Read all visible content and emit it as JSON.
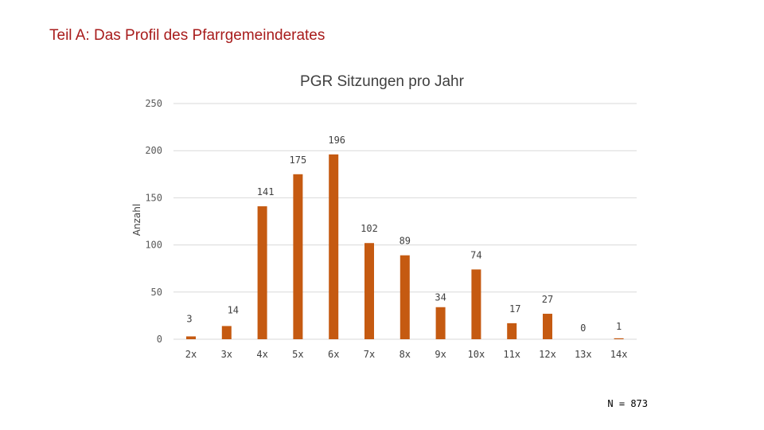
{
  "slide": {
    "title": "Teil A: Das Profil des Pfarrgemeinderates",
    "footnote": "N = 873"
  },
  "colors": {
    "title": "#a81c1c",
    "bar": "#c55a11",
    "gridline": "#d9d9d9",
    "text": "#404040"
  },
  "chart_data": {
    "type": "bar",
    "title": "PGR Sitzungen pro Jahr",
    "xlabel": "",
    "ylabel": "Anzahl",
    "categories": [
      "2x",
      "3x",
      "4x",
      "5x",
      "6x",
      "7x",
      "8x",
      "9x",
      "10x",
      "11x",
      "12x",
      "13x",
      "14x"
    ],
    "values": [
      3,
      14,
      141,
      175,
      196,
      102,
      89,
      34,
      74,
      17,
      27,
      0,
      1
    ],
    "ylim": [
      0,
      250
    ],
    "yticks": [
      0,
      50,
      100,
      150,
      200,
      250
    ],
    "grid": true,
    "legend": "none"
  }
}
